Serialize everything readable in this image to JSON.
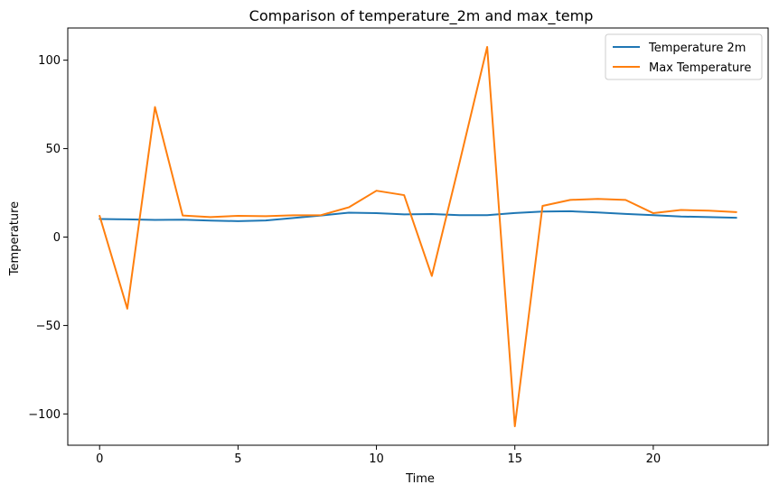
{
  "chart_data": {
    "type": "line",
    "title": "Comparison of temperature_2m and max_temp",
    "xlabel": "Time",
    "ylabel": "Temperature",
    "xlim": [
      -1.15,
      24.15
    ],
    "ylim": [
      -117.7,
      118.2
    ],
    "xticks": [
      0,
      5,
      10,
      15,
      20
    ],
    "yticks": [
      -100,
      -50,
      0,
      50,
      100
    ],
    "xtick_labels": [
      "0",
      "5",
      "10",
      "15",
      "20"
    ],
    "ytick_labels": [
      "−100",
      "−50",
      "0",
      "50",
      "100"
    ],
    "grid": false,
    "legend_position": "top-right",
    "x": [
      0,
      1,
      2,
      3,
      4,
      5,
      6,
      7,
      8,
      9,
      10,
      11,
      12,
      13,
      14,
      15,
      16,
      17,
      18,
      19,
      20,
      21,
      22,
      23
    ],
    "series": [
      {
        "name": "Temperature 2m",
        "color": "#1f77b4",
        "values": [
          10.2,
          10.0,
          9.7,
          9.8,
          9.3,
          9.0,
          9.4,
          10.8,
          12.2,
          13.8,
          13.5,
          12.8,
          13.0,
          12.4,
          12.4,
          13.6,
          14.4,
          14.6,
          13.9,
          13.1,
          12.4,
          11.6,
          11.3,
          10.9
        ]
      },
      {
        "name": "Max Temperature",
        "color": "#ff7f0e",
        "values": [
          12.0,
          -40.5,
          73.5,
          12.2,
          11.3,
          12.0,
          11.8,
          12.3,
          12.4,
          16.8,
          26.2,
          23.7,
          -22.0,
          42.0,
          107.5,
          -107.0,
          17.6,
          21.0,
          21.6,
          21.0,
          13.5,
          15.3,
          14.9,
          14.1
        ]
      }
    ]
  }
}
